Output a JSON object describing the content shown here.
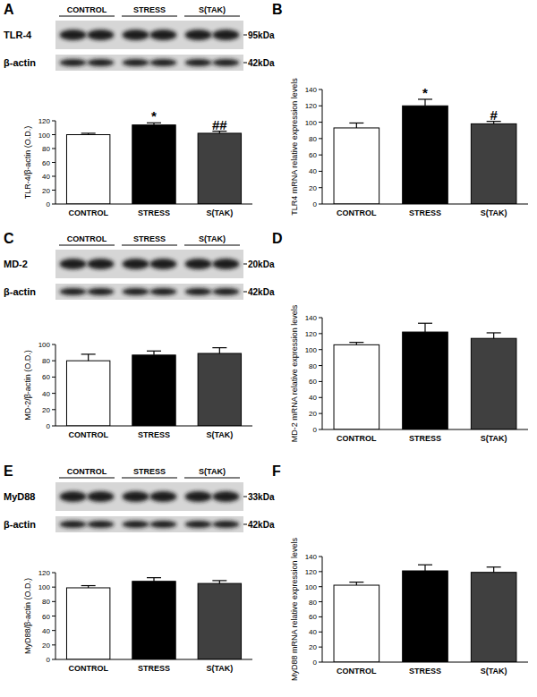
{
  "chart_data": [
    {
      "type": "bar",
      "panel": "A",
      "y_label": "TLR-4/β-actin (O.D.)",
      "categories": [
        "CONTROL",
        "STRESS",
        "S(TAK)"
      ],
      "values": [
        100,
        114,
        102
      ],
      "errors": [
        2,
        3,
        3
      ],
      "colors": [
        "#ffffff",
        "#000000",
        "#404040"
      ],
      "ylim": [
        0,
        120
      ],
      "yticks": [
        0,
        20,
        40,
        60,
        80,
        100,
        120
      ],
      "annotations": [
        null,
        "*",
        "##"
      ],
      "blot": {
        "protein": "TLR-4",
        "protein_kda": "95kDa",
        "control": "β-actin",
        "control_kda": "42kDa"
      }
    },
    {
      "type": "bar",
      "panel": "B",
      "y_label": "TLR4 mRNA relative expression levels",
      "categories": [
        "CONTROL",
        "STRESS",
        "S(TAK)"
      ],
      "values": [
        93,
        120,
        98
      ],
      "errors": [
        6,
        8,
        3
      ],
      "colors": [
        "#ffffff",
        "#000000",
        "#404040"
      ],
      "ylim": [
        0,
        140
      ],
      "yticks": [
        0,
        20,
        40,
        60,
        80,
        100,
        120,
        140
      ],
      "annotations": [
        null,
        "*",
        "#"
      ]
    },
    {
      "type": "bar",
      "panel": "C",
      "y_label": "MD-2/β-actin (O.D.)",
      "categories": [
        "CONTROL",
        "STRESS",
        "S(TAK)"
      ],
      "values": [
        80,
        87,
        89
      ],
      "errors": [
        8,
        5,
        7
      ],
      "colors": [
        "#ffffff",
        "#000000",
        "#404040"
      ],
      "ylim": [
        0,
        100
      ],
      "yticks": [
        0,
        20,
        40,
        60,
        80,
        100
      ],
      "blot": {
        "protein": "MD-2",
        "protein_kda": "20kDa",
        "control": "β-actin",
        "control_kda": "42kDa"
      }
    },
    {
      "type": "bar",
      "panel": "D",
      "y_label": "MD-2 mRNA relative expression levels",
      "categories": [
        "CONTROL",
        "STRESS",
        "S(TAK)"
      ],
      "values": [
        106,
        122,
        114
      ],
      "errors": [
        3,
        11,
        7
      ],
      "colors": [
        "#ffffff",
        "#000000",
        "#404040"
      ],
      "ylim": [
        0,
        140
      ],
      "yticks": [
        0,
        20,
        40,
        60,
        80,
        100,
        120,
        140
      ]
    },
    {
      "type": "bar",
      "panel": "E",
      "y_label": "MyD88/β-actin (O.D.)",
      "categories": [
        "CONTROL",
        "STRESS",
        "S(TAK)"
      ],
      "values": [
        99,
        108,
        105
      ],
      "errors": [
        3,
        5,
        4
      ],
      "colors": [
        "#ffffff",
        "#000000",
        "#404040"
      ],
      "ylim": [
        0,
        120
      ],
      "yticks": [
        0,
        20,
        40,
        60,
        80,
        100,
        120
      ],
      "blot": {
        "protein": "MyD88",
        "protein_kda": "33kDa",
        "control": "β-actin",
        "control_kda": "42kDa"
      }
    },
    {
      "type": "bar",
      "panel": "F",
      "y_label": "MyD88 mRNA relative expression levels",
      "categories": [
        "CONTROL",
        "STRESS",
        "S(TAK)"
      ],
      "values": [
        102,
        121,
        119
      ],
      "errors": [
        4,
        8,
        7
      ],
      "colors": [
        "#ffffff",
        "#000000",
        "#404040"
      ],
      "ylim": [
        0,
        140
      ],
      "yticks": [
        0,
        20,
        40,
        60,
        80,
        100,
        120,
        140
      ]
    }
  ]
}
